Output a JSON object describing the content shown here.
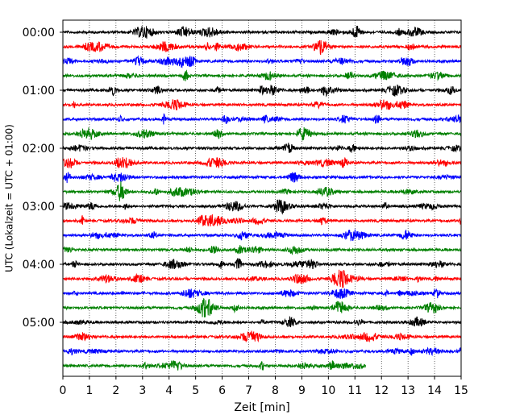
{
  "chart_data": {
    "type": "line",
    "title": "",
    "xlabel": "Zeit  [min]",
    "ylabel": "UTC (Lokalzeit = UTC + 01:00)",
    "xlim": [
      0,
      15
    ],
    "x_ticks": [
      "0",
      "1",
      "2",
      "3",
      "4",
      "5",
      "6",
      "7",
      "8",
      "9",
      "10",
      "11",
      "12",
      "13",
      "14",
      "15"
    ],
    "y_ticks": [
      "00:00",
      "01:00",
      "02:00",
      "03:00",
      "04:00",
      "05:00"
    ],
    "grid": "vertical dotted",
    "trace_interval_minutes": 15,
    "trace_count": 24,
    "last_trace_end_min": 11.4,
    "trace_colors": [
      "#000000",
      "#ff0000",
      "#0000ff",
      "#008000"
    ]
  }
}
